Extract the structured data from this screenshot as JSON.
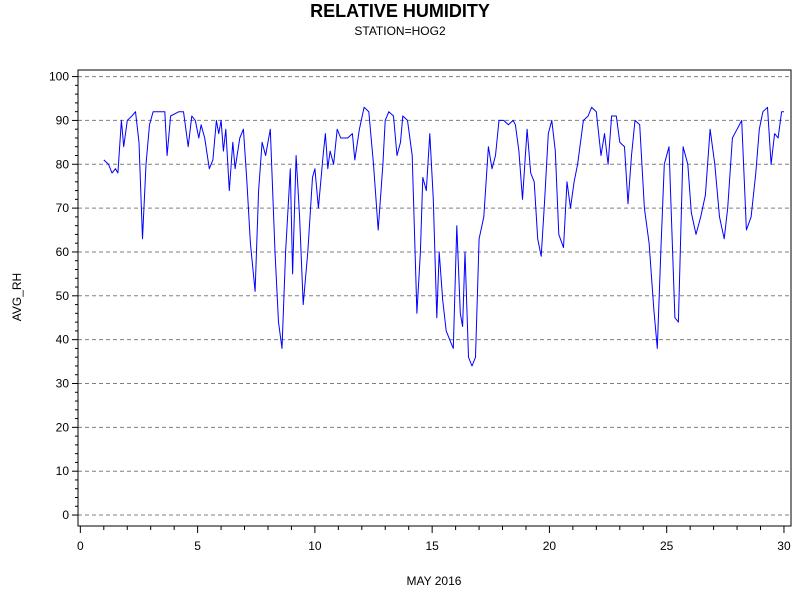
{
  "chart_data": {
    "type": "line",
    "title": "RELATIVE HUMIDITY",
    "subtitle": "STATION=HOG2",
    "xlabel": "MAY 2016",
    "ylabel": "AVG_RH",
    "xlim": [
      -0.1,
      30.3
    ],
    "ylim": [
      -2.5,
      101.5
    ],
    "x_ticks": [
      0,
      5,
      10,
      15,
      20,
      25,
      30
    ],
    "x_minor_step": 1,
    "y_ticks": [
      0,
      10,
      20,
      30,
      40,
      50,
      60,
      70,
      80,
      90,
      100
    ],
    "y_minor_step": 2,
    "grid": {
      "y": "dashed-at-even-twenty",
      "x": "off"
    },
    "colors": {
      "series": "#0000ff",
      "grid": "#808080",
      "axis": "#000000"
    },
    "series": [
      {
        "values": [
          [
            1.0,
            81
          ],
          [
            1.2,
            80
          ],
          [
            1.35,
            78
          ],
          [
            1.5,
            79
          ],
          [
            1.6,
            78
          ],
          [
            1.75,
            90
          ],
          [
            1.85,
            84
          ],
          [
            2.0,
            90
          ],
          [
            2.2,
            91
          ],
          [
            2.35,
            92
          ],
          [
            2.5,
            85
          ],
          [
            2.65,
            63
          ],
          [
            2.8,
            80
          ],
          [
            2.95,
            89
          ],
          [
            3.1,
            92
          ],
          [
            3.4,
            92
          ],
          [
            3.6,
            92
          ],
          [
            3.7,
            82
          ],
          [
            3.85,
            91
          ],
          [
            4.2,
            92
          ],
          [
            4.4,
            92
          ],
          [
            4.6,
            84
          ],
          [
            4.75,
            91
          ],
          [
            4.9,
            90
          ],
          [
            5.05,
            86
          ],
          [
            5.15,
            89
          ],
          [
            5.3,
            86
          ],
          [
            5.5,
            79
          ],
          [
            5.65,
            81
          ],
          [
            5.8,
            90
          ],
          [
            5.9,
            87
          ],
          [
            6.0,
            90
          ],
          [
            6.1,
            83
          ],
          [
            6.2,
            88
          ],
          [
            6.35,
            74
          ],
          [
            6.5,
            85
          ],
          [
            6.6,
            79
          ],
          [
            6.8,
            86
          ],
          [
            6.95,
            88
          ],
          [
            7.1,
            76
          ],
          [
            7.25,
            62
          ],
          [
            7.45,
            51
          ],
          [
            7.6,
            74
          ],
          [
            7.75,
            85
          ],
          [
            7.9,
            82
          ],
          [
            8.1,
            88
          ],
          [
            8.3,
            60
          ],
          [
            8.45,
            44
          ],
          [
            8.6,
            38
          ],
          [
            8.75,
            60
          ],
          [
            8.95,
            79
          ],
          [
            9.05,
            55
          ],
          [
            9.2,
            82
          ],
          [
            9.35,
            68
          ],
          [
            9.5,
            48
          ],
          [
            9.7,
            60
          ],
          [
            9.9,
            77
          ],
          [
            10.0,
            79
          ],
          [
            10.15,
            70
          ],
          [
            10.35,
            82
          ],
          [
            10.45,
            87
          ],
          [
            10.55,
            79
          ],
          [
            10.65,
            83
          ],
          [
            10.8,
            80
          ],
          [
            10.95,
            88
          ],
          [
            11.1,
            86
          ],
          [
            11.4,
            86
          ],
          [
            11.6,
            87
          ],
          [
            11.7,
            81
          ],
          [
            11.9,
            88
          ],
          [
            12.1,
            93
          ],
          [
            12.3,
            92
          ],
          [
            12.5,
            80
          ],
          [
            12.7,
            65
          ],
          [
            12.9,
            80
          ],
          [
            13.0,
            90
          ],
          [
            13.15,
            92
          ],
          [
            13.35,
            91
          ],
          [
            13.5,
            82
          ],
          [
            13.65,
            85
          ],
          [
            13.75,
            91
          ],
          [
            13.95,
            90
          ],
          [
            14.15,
            82
          ],
          [
            14.35,
            46
          ],
          [
            14.5,
            60
          ],
          [
            14.6,
            77
          ],
          [
            14.75,
            74
          ],
          [
            14.9,
            87
          ],
          [
            15.05,
            72
          ],
          [
            15.2,
            45
          ],
          [
            15.3,
            60
          ],
          [
            15.45,
            49
          ],
          [
            15.6,
            42
          ],
          [
            15.75,
            40
          ],
          [
            15.9,
            38
          ],
          [
            16.05,
            66
          ],
          [
            16.2,
            46
          ],
          [
            16.3,
            43
          ],
          [
            16.4,
            60
          ],
          [
            16.55,
            36
          ],
          [
            16.7,
            34
          ],
          [
            16.85,
            36
          ],
          [
            17.0,
            63
          ],
          [
            17.2,
            68
          ],
          [
            17.4,
            84
          ],
          [
            17.55,
            79
          ],
          [
            17.7,
            82
          ],
          [
            17.85,
            90
          ],
          [
            18.05,
            90
          ],
          [
            18.25,
            89
          ],
          [
            18.45,
            90
          ],
          [
            18.55,
            89
          ],
          [
            18.7,
            83
          ],
          [
            18.85,
            72
          ],
          [
            19.05,
            88
          ],
          [
            19.2,
            78
          ],
          [
            19.35,
            76
          ],
          [
            19.5,
            63
          ],
          [
            19.65,
            59
          ],
          [
            19.8,
            72
          ],
          [
            19.95,
            87
          ],
          [
            20.1,
            90
          ],
          [
            20.25,
            83
          ],
          [
            20.4,
            64
          ],
          [
            20.6,
            61
          ],
          [
            20.75,
            76
          ],
          [
            20.9,
            70
          ],
          [
            21.05,
            76
          ],
          [
            21.2,
            80
          ],
          [
            21.45,
            90
          ],
          [
            21.65,
            91
          ],
          [
            21.8,
            93
          ],
          [
            22.0,
            92
          ],
          [
            22.2,
            82
          ],
          [
            22.35,
            87
          ],
          [
            22.5,
            80
          ],
          [
            22.65,
            91
          ],
          [
            22.85,
            91
          ],
          [
            23.0,
            85
          ],
          [
            23.2,
            84
          ],
          [
            23.35,
            71
          ],
          [
            23.5,
            82
          ],
          [
            23.65,
            90
          ],
          [
            23.85,
            89
          ],
          [
            24.05,
            70
          ],
          [
            24.25,
            62
          ],
          [
            24.45,
            47
          ],
          [
            24.6,
            38
          ],
          [
            24.75,
            60
          ],
          [
            24.9,
            80
          ],
          [
            25.1,
            84
          ],
          [
            25.2,
            68
          ],
          [
            25.35,
            45
          ],
          [
            25.5,
            44
          ],
          [
            25.7,
            84
          ],
          [
            25.9,
            80
          ],
          [
            26.05,
            69
          ],
          [
            26.25,
            64
          ],
          [
            26.45,
            68
          ],
          [
            26.65,
            73
          ],
          [
            26.85,
            88
          ],
          [
            27.05,
            80
          ],
          [
            27.25,
            68
          ],
          [
            27.45,
            63
          ],
          [
            27.6,
            70
          ],
          [
            27.8,
            86
          ],
          [
            28.0,
            88
          ],
          [
            28.2,
            90
          ],
          [
            28.4,
            65
          ],
          [
            28.6,
            68
          ],
          [
            28.8,
            78
          ],
          [
            28.95,
            88
          ],
          [
            29.1,
            92
          ],
          [
            29.3,
            93
          ],
          [
            29.45,
            80
          ],
          [
            29.6,
            87
          ],
          [
            29.75,
            86
          ],
          [
            29.9,
            92
          ],
          [
            30.0,
            92
          ]
        ]
      }
    ]
  }
}
